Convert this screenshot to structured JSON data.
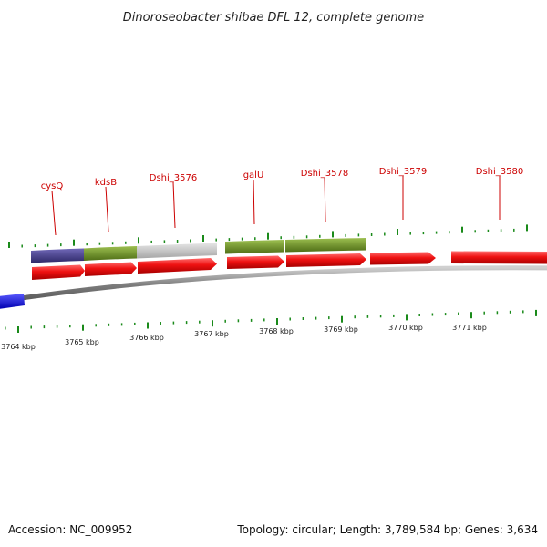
{
  "title": "Dinoroseobacter shibae DFL 12, complete genome",
  "footer": {
    "accession": "Accession: NC_009952",
    "summary": "Topology: circular; Length: 3,789,584 bp; Genes: 3,634"
  },
  "colors": {
    "cds": "#ee1111",
    "cog_green": "#6b8e23",
    "cog_purple": "#48408a",
    "cog_grey": "#c8c8c8",
    "blue_feature": "#1a1aee",
    "backbone": "#888888",
    "tick": "#1a8a1a",
    "label": "#cc0000"
  },
  "genes": [
    {
      "label": "cysQ"
    },
    {
      "label": "kdsB"
    },
    {
      "label": "Dshi_3576"
    },
    {
      "label": "galU"
    },
    {
      "label": "Dshi_3578"
    },
    {
      "label": "Dshi_3579"
    },
    {
      "label": "Dshi_3580"
    }
  ],
  "scale_labels": [
    "3764 kbp",
    "3765 kbp",
    "3766 kbp",
    "3767 kbp",
    "3768 kbp",
    "3769 kbp",
    "3770 kbp",
    "3771 kbp"
  ]
}
